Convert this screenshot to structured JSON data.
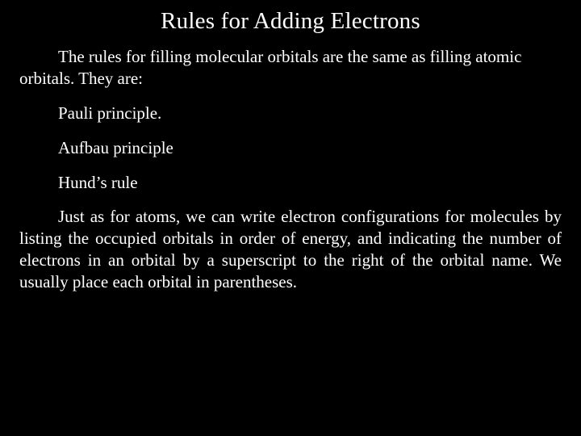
{
  "background_color": "#000000",
  "text_color": "#ffffff",
  "title_fontsize": 29,
  "body_fontsize": 21,
  "font_family": "Times New Roman",
  "title": "Rules for Adding Electrons",
  "paragraphs": {
    "intro": "The rules for filling molecular orbitals are the same as filling atomic orbitals.  They are:",
    "rule1": "Pauli principle.",
    "rule2": "Aufbau principle",
    "rule3": "Hund’s rule",
    "outro": "Just as for atoms, we can write electron configurations for molecules by listing the occupied orbitals in order of energy, and indicating the number of electrons in an orbital by a superscript to the right of the orbital name.  We usually place each orbital in parentheses."
  }
}
